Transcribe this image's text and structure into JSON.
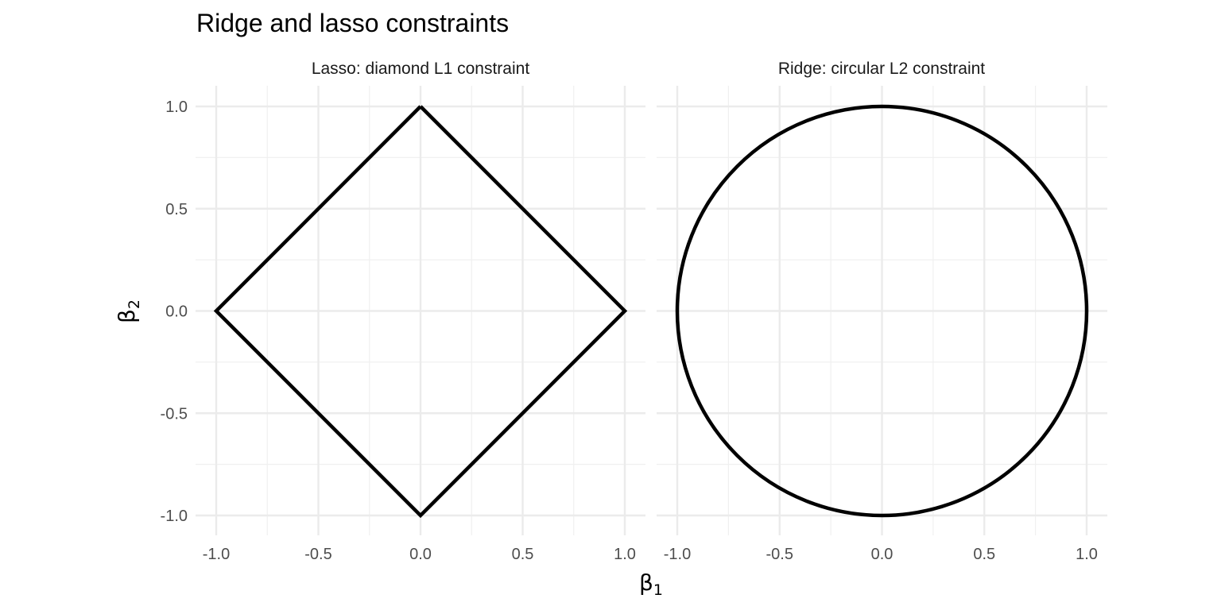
{
  "chart_data": {
    "title": "Ridge and lasso constraints",
    "xlabel": {
      "symbol": "β",
      "subscript": "1"
    },
    "ylabel": {
      "symbol": "β",
      "subscript": "2"
    },
    "grid": true,
    "panels": [
      {
        "type": "line",
        "strip_title": "Lasso: diamond L1 constraint",
        "series": [
          {
            "color": "#000000",
            "points": [
              [
                0,
                1
              ],
              [
                1,
                0
              ],
              [
                0,
                -1
              ],
              [
                -1,
                0
              ],
              [
                0,
                1
              ]
            ]
          }
        ],
        "xlim": [
          -1.0,
          1.0
        ],
        "ylim": [
          -1.0,
          1.0
        ],
        "x_ticks": [
          "-1.0",
          "-0.5",
          "0.0",
          "0.5",
          "1.0"
        ],
        "y_ticks": [
          "-1.0",
          "-0.5",
          "0.0",
          "0.5",
          "1.0"
        ]
      },
      {
        "type": "line",
        "strip_title": "Ridge: circular L2 constraint",
        "series": [
          {
            "color": "#000000",
            "curve": "unit circle",
            "equation": "β1² + β2² = 1"
          }
        ],
        "xlim": [
          -1.0,
          1.0
        ],
        "ylim": [
          -1.0,
          1.0
        ],
        "x_ticks": [
          "-1.0",
          "-0.5",
          "0.0",
          "0.5",
          "1.0"
        ],
        "y_ticks": [
          "-1.0",
          "-0.5",
          "0.0",
          "0.5",
          "1.0"
        ]
      }
    ]
  }
}
